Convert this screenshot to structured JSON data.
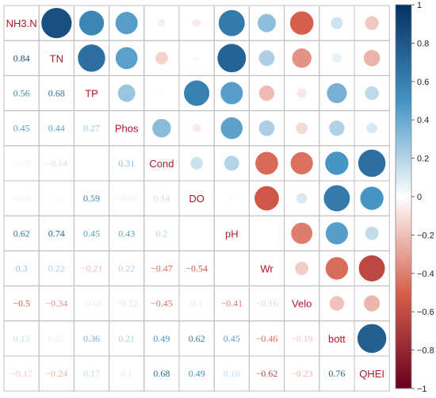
{
  "chart_data": {
    "type": "heatmap",
    "title": "",
    "variables": [
      "NH3.N",
      "TN",
      "TP",
      "Phos",
      "Cond",
      "DO",
      "pH",
      "Wr",
      "Velo",
      "bott",
      "QHEI"
    ],
    "matrix": [
      [
        1,
        0.84,
        0.56,
        0.45,
        -0.05,
        -0.06,
        0.62,
        0.3,
        -0.5,
        0.13,
        -0.17
      ],
      [
        0.84,
        1,
        0.68,
        0.44,
        -0.14,
        0.02,
        0.74,
        0.22,
        -0.34,
        0.07,
        -0.24
      ],
      [
        0.56,
        0.68,
        1,
        0.27,
        0.01,
        0.59,
        0.45,
        -0.21,
        -0.08,
        0.36,
        0.17
      ],
      [
        0.45,
        0.44,
        0.27,
        1,
        0.31,
        -0.06,
        0.43,
        0.22,
        -0.12,
        0.21,
        0.1
      ],
      [
        -0.05,
        -0.14,
        0.01,
        0.31,
        1,
        0.14,
        0.2,
        -0.47,
        -0.45,
        0.49,
        0.68
      ],
      [
        -0.06,
        0.02,
        0.59,
        -0.06,
        0.14,
        1,
        0.02,
        -0.54,
        0.1,
        0.62,
        0.49
      ],
      [
        0.62,
        0.74,
        0.45,
        0.43,
        0.2,
        0.02,
        1,
        0.0,
        -0.41,
        0.45,
        0.16
      ],
      [
        0.3,
        0.22,
        -0.21,
        0.22,
        -0.47,
        -0.54,
        0.0,
        1,
        -0.16,
        -0.46,
        -0.62
      ],
      [
        -0.5,
        -0.34,
        -0.08,
        -0.12,
        -0.45,
        0.1,
        -0.41,
        -0.16,
        1,
        -0.19,
        -0.23
      ],
      [
        0.13,
        0.07,
        0.36,
        0.21,
        0.49,
        0.62,
        0.45,
        -0.46,
        -0.19,
        1,
        0.76
      ],
      [
        -0.17,
        -0.24,
        0.17,
        0.1,
        0.68,
        0.49,
        0.16,
        -0.62,
        -0.23,
        0.76,
        1
      ]
    ],
    "lower_labels": [
      [
        "",
        "",
        "",
        "",
        "",
        "",
        "",
        "",
        "",
        "",
        ""
      ],
      [
        "0.84",
        "",
        "",
        "",
        "",
        "",
        "",
        "",
        "",
        "",
        ""
      ],
      [
        "0.56",
        "0.68",
        "",
        "",
        "",
        "",
        "",
        "",
        "",
        "",
        ""
      ],
      [
        "0.45",
        "0.44",
        "0.27",
        "",
        "",
        "",
        "",
        "",
        "",
        "",
        ""
      ],
      [
        "−0.05",
        "−0.14",
        "",
        "0.31",
        "",
        "",
        "",
        "",
        "",
        "",
        ""
      ],
      [
        "−0.06",
        "0.02",
        "0.59",
        "−0.06",
        "0.14",
        "",
        "",
        "",
        "",
        "",
        ""
      ],
      [
        "0.62",
        "0.74",
        "0.45",
        "0.43",
        "0.2",
        "",
        "",
        "",
        "",
        "",
        ""
      ],
      [
        "0.3",
        "0.22",
        "−0.21",
        "0.22",
        "−0.47",
        "−0.54",
        "",
        "",
        "",
        "",
        ""
      ],
      [
        "−0.5",
        "−0.34",
        "−0.08",
        "−0.12",
        "−0.45",
        "0.1",
        "−0.41",
        "−0.16",
        "",
        "",
        ""
      ],
      [
        "0.13",
        "0.07",
        "0.36",
        "0.21",
        "0.49",
        "0.62",
        "0.45",
        "−0.46",
        "−0.19",
        "",
        ""
      ],
      [
        "−0.17",
        "−0.24",
        "0.17",
        "0.1",
        "0.68",
        "0.49",
        "0.16",
        "−0.62",
        "−0.23",
        "0.76",
        ""
      ]
    ],
    "upper_style": "circle",
    "lower_style": "number",
    "colorbar": {
      "ticks": [
        "1",
        "0.8",
        "0.6",
        "0.4",
        "0.2",
        "0",
        "−0.2",
        "−0.4",
        "−0.6",
        "−0.8",
        "−1"
      ],
      "tick_values": [
        1,
        0.8,
        0.6,
        0.4,
        0.2,
        0,
        -0.2,
        -0.4,
        -0.6,
        -0.8,
        -1
      ],
      "range": [
        -1,
        1
      ],
      "placement": "right"
    },
    "colors": {
      "low": "#67001f",
      "mid_low": "#d6604d",
      "mid": "#ffffff",
      "mid_high": "#4393c3",
      "high": "#053061",
      "label": "#b2182b",
      "grid": "#bfbfbf"
    }
  }
}
